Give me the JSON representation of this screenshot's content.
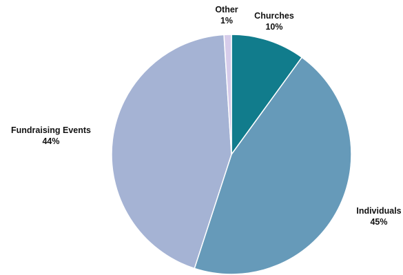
{
  "chart_data": {
    "type": "pie",
    "slices": [
      {
        "label": "Churches",
        "value": 10,
        "value_label": "10%",
        "color": "#117C8C"
      },
      {
        "label": "Individuals",
        "value": 45,
        "value_label": "45%",
        "color": "#669AB9"
      },
      {
        "label": "Fundraising Events",
        "value": 44,
        "value_label": "44%",
        "color": "#A5B3D4"
      },
      {
        "label": "Other",
        "value": 1,
        "value_label": "1%",
        "color": "#D6CCEA"
      }
    ],
    "start": "12 o'clock",
    "direction": "clockwise",
    "legend": "none"
  }
}
